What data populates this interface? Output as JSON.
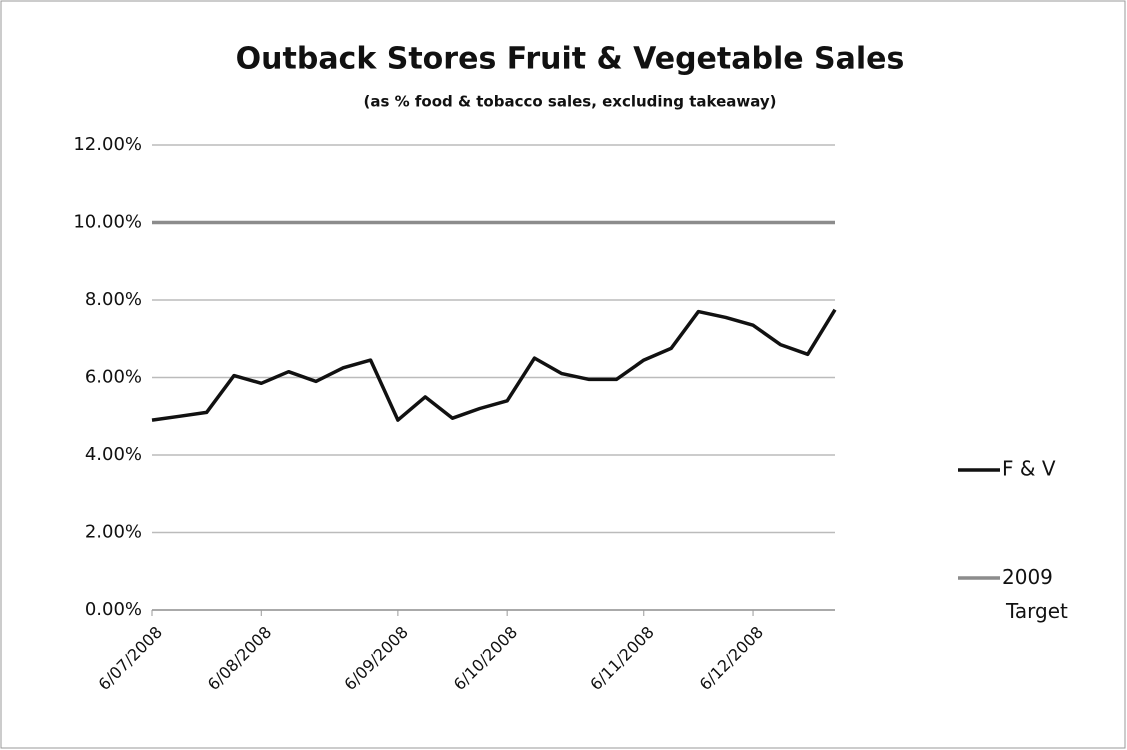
{
  "chart_data": {
    "type": "line",
    "title": "Outback Stores Fruit & Vegetable Sales",
    "subtitle": "(as % food & tobacco sales, excluding takeaway)",
    "categories": [
      "6/07/2008",
      null,
      null,
      null,
      "6/08/2008",
      null,
      null,
      null,
      null,
      "6/09/2008",
      null,
      null,
      null,
      "6/10/2008",
      null,
      null,
      null,
      null,
      "6/11/2008",
      null,
      null,
      null,
      "6/12/2008",
      null,
      null,
      null
    ],
    "series": [
      {
        "name": "F & V",
        "color": "#111111",
        "values": [
          4.9,
          5.0,
          5.1,
          6.05,
          5.85,
          6.15,
          5.9,
          6.25,
          6.45,
          4.9,
          5.5,
          4.95,
          5.2,
          5.4,
          6.5,
          6.1,
          5.95,
          5.95,
          6.45,
          6.75,
          7.7,
          7.55,
          7.35,
          6.85,
          6.6,
          7.75
        ]
      },
      {
        "name": "2009 Target",
        "color": "#8c8c8c",
        "values": [
          10,
          10,
          10,
          10,
          10,
          10,
          10,
          10,
          10,
          10,
          10,
          10,
          10,
          10,
          10,
          10,
          10,
          10,
          10,
          10,
          10,
          10,
          10,
          10,
          10,
          10
        ]
      }
    ],
    "ylim": [
      0,
      12
    ],
    "yticks": [
      {
        "value": 0,
        "label": "0.00%"
      },
      {
        "value": 2,
        "label": "2.00%"
      },
      {
        "value": 4,
        "label": "4.00%"
      },
      {
        "value": 6,
        "label": "6.00%"
      },
      {
        "value": 8,
        "label": "8.00%"
      },
      {
        "value": 10,
        "label": "10.00%"
      },
      {
        "value": 12,
        "label": "12.00%"
      }
    ],
    "grid": true,
    "legend": "right"
  }
}
